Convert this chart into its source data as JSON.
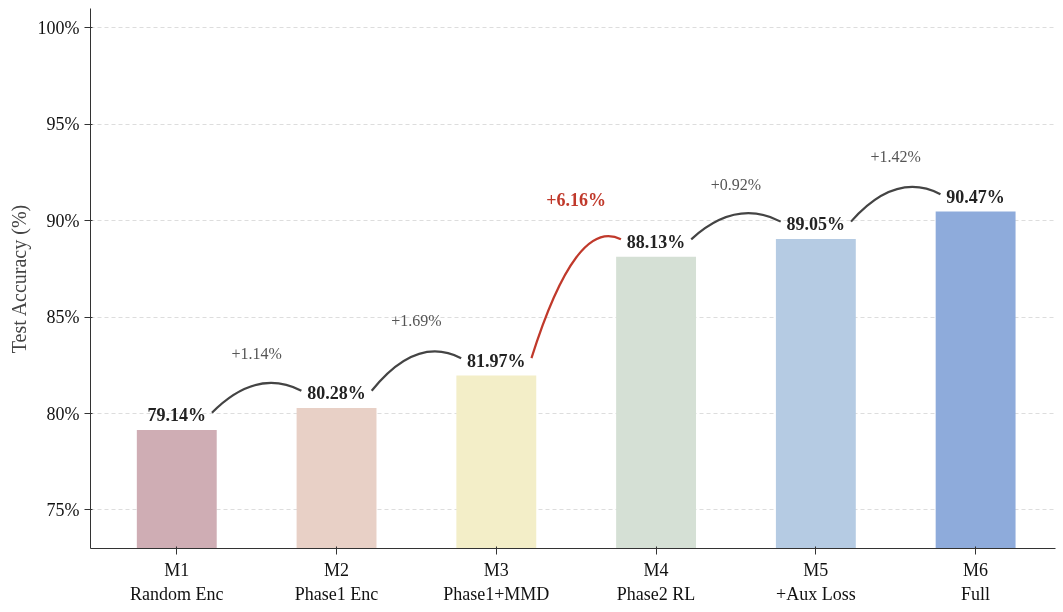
{
  "chart_data": {
    "type": "bar",
    "ylabel": "Test Accuracy (%)",
    "categories": [
      "M1\nRandom Enc",
      "M2\nPhase1 Enc",
      "M3\nPhase1+MMD",
      "M4\nPhase2 RL",
      "M5\n+Aux Loss",
      "M6\nFull"
    ],
    "values": [
      79.14,
      80.28,
      81.97,
      88.13,
      89.05,
      90.47
    ],
    "colors": [
      "#cfadb4",
      "#e8d0c6",
      "#f3eec8",
      "#d5e0d5",
      "#b5cbe3",
      "#8eabdb"
    ],
    "value_labels": [
      "79.14%",
      "80.28%",
      "81.97%",
      "88.13%",
      "89.05%",
      "90.47%"
    ],
    "annotations": [
      "+1.14%",
      "+1.69%",
      "+6.16%",
      "+0.92%",
      "+1.42%"
    ],
    "ylim": [
      73,
      101
    ],
    "yticks": [
      {
        "value": 75,
        "label": "75%"
      },
      {
        "value": 80,
        "label": "80%"
      },
      {
        "value": 85,
        "label": "85%"
      },
      {
        "value": 90,
        "label": "90%"
      },
      {
        "value": 95,
        "label": "95%"
      },
      {
        "value": 100,
        "label": "100%"
      }
    ],
    "grid": "y"
  }
}
